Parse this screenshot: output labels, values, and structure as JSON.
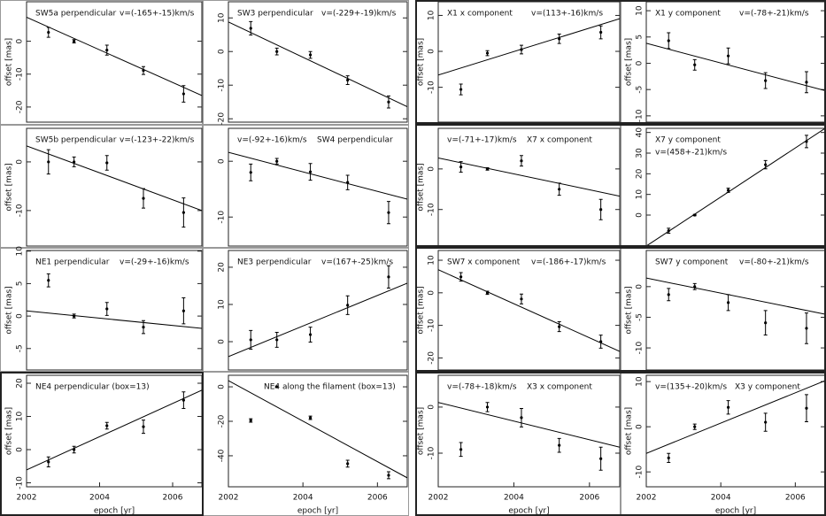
{
  "chart_data": [
    {
      "type": "scatter",
      "title": "SW5a perpendicular",
      "annotation": "v=(-165+-15)km/s",
      "ylabel": "offset [mas]",
      "x": [
        2002.6,
        2003.3,
        2004.2,
        2005.2,
        2006.3
      ],
      "values": [
        2.7,
        0,
        -2.7,
        -8.9,
        -16
      ],
      "errors": [
        1.5,
        0.5,
        1.5,
        1.2,
        2.5
      ],
      "fit": {
        "x": [
          2002,
          2006.8
        ],
        "y": [
          7.3,
          -16.5
        ]
      },
      "xlim": [
        2002,
        2006.8
      ],
      "ylim": [
        -24.6,
        12
      ],
      "yticks": [
        0,
        -10,
        -20
      ],
      "color": "#000000"
    },
    {
      "type": "scatter",
      "title": "SW3 perpendicular",
      "annotation": "v=(-229+-19)km/s",
      "x": [
        2002.6,
        2003.3,
        2004.2,
        2005.2,
        2006.3
      ],
      "values": [
        6.9,
        0,
        -1,
        -8.5,
        -15
      ],
      "errors": [
        2,
        1,
        1,
        1.3,
        1.8
      ],
      "fit": {
        "x": [
          2002,
          2006.8
        ],
        "y": [
          8.8,
          -16.4
        ]
      },
      "xlim": [
        2002,
        2006.8
      ],
      "ylim": [
        -21,
        14.8
      ],
      "yticks": [
        10,
        0,
        -10,
        -20
      ],
      "color": "#000000"
    },
    {
      "type": "scatter",
      "title": "X1 x component",
      "annotation": "v=(113+-16)km/s",
      "ylabel": "offset [mas]",
      "x": [
        2002.6,
        2003.3,
        2004.2,
        2005.2,
        2006.3
      ],
      "values": [
        -10.6,
        -0.5,
        0.5,
        3.5,
        5.3
      ],
      "errors": [
        1.5,
        0.7,
        1.2,
        1.3,
        1.8
      ],
      "fit": {
        "x": [
          2002,
          2006.8
        ],
        "y": [
          -6.6,
          9.1
        ]
      },
      "xlim": [
        2002,
        2006.8
      ],
      "ylim": [
        -19.7,
        13.8
      ],
      "yticks": [
        10,
        0,
        -10
      ],
      "color": "#000000"
    },
    {
      "type": "scatter",
      "title": "X1 y component",
      "annotation": "v=(-78+-21)km/s",
      "ylabel": "offset [mas]",
      "x": [
        2002.6,
        2003.3,
        2004.2,
        2005.2,
        2006.3
      ],
      "values": [
        4.3,
        -0.3,
        1.4,
        -3.3,
        -3.6
      ],
      "errors": [
        1.5,
        1,
        1.5,
        1.5,
        2
      ],
      "fit": {
        "x": [
          2002,
          2006.8
        ],
        "y": [
          3.8,
          -5.2
        ]
      },
      "xlim": [
        2002,
        2006.8
      ],
      "ylim": [
        -11.2,
        11.7
      ],
      "yticks": [
        10,
        5,
        0,
        -5,
        -10
      ],
      "color": "#000000"
    },
    {
      "type": "scatter",
      "title": "SW5b perpendicular",
      "annotation": "v=(-123+-22)km/s",
      "ylabel": "offset [mas]",
      "x": [
        2002.6,
        2003.3,
        2004.2,
        2005.2,
        2006.3
      ],
      "values": [
        0,
        0,
        -0.2,
        -7.5,
        -10.4
      ],
      "errors": [
        2.5,
        1,
        1.5,
        2,
        3
      ],
      "fit": {
        "x": [
          2002,
          2006.8
        ],
        "y": [
          3.3,
          -10
        ]
      },
      "xlim": [
        2002,
        2006.8
      ],
      "ylim": [
        -17.3,
        6.9
      ],
      "yticks": [
        0,
        -10
      ],
      "color": "#000000"
    },
    {
      "type": "scatter",
      "title": "SW4 perpendicular",
      "annotation": "v=(-92+-16)km/s",
      "x": [
        2002.6,
        2003.3,
        2004.2,
        2005.2,
        2006.3
      ],
      "values": [
        -2,
        0,
        -1.9,
        -3.8,
        -9.2
      ],
      "errors": [
        1.5,
        0.5,
        1.5,
        1.3,
        2
      ],
      "fit": {
        "x": [
          2002,
          2006.8
        ],
        "y": [
          1.6,
          -6.8
        ]
      },
      "xlim": [
        2002,
        2006.8
      ],
      "ylim": [
        -15.2,
        5.9
      ],
      "yticks": [
        0,
        -10
      ],
      "color": "#000000"
    },
    {
      "type": "scatter",
      "title": "X7 x component",
      "annotation": "v=(-71+-17)km/s",
      "ylabel": "offset [mas]",
      "x": [
        2002.6,
        2003.3,
        2004.2,
        2005.2,
        2006.3
      ],
      "values": [
        0.5,
        0,
        2,
        -5,
        -10
      ],
      "errors": [
        1.3,
        0.3,
        1.3,
        1.5,
        2.5
      ],
      "fit": {
        "x": [
          2002,
          2006.8
        ],
        "y": [
          2.7,
          -6.7
        ]
      },
      "xlim": [
        2002,
        2006.8
      ],
      "ylim": [
        -19,
        10
      ],
      "yticks": [
        0,
        -10
      ],
      "color": "#000000"
    },
    {
      "type": "scatter",
      "title": "X7 y component",
      "annotation": "v=(458+-21)km/s",
      "x": [
        2002.6,
        2003.3,
        2004.2,
        2005.2,
        2006.3
      ],
      "values": [
        -7.6,
        0,
        12,
        24.4,
        35.6
      ],
      "errors": [
        1.2,
        0.3,
        1,
        2,
        3
      ],
      "fit": {
        "x": [
          2002,
          2006.8
        ],
        "y": [
          -15,
          42
        ]
      },
      "xlim": [
        2002,
        2006.8
      ],
      "ylim": [
        -15,
        42
      ],
      "yticks": [
        40,
        30,
        20,
        10,
        0
      ],
      "color": "#000000"
    },
    {
      "type": "scatter",
      "title": "NE1 perpendicular",
      "annotation": "v=(-29+-16)km/s",
      "ylabel": "offset [mas]",
      "x": [
        2002.6,
        2003.3,
        2004.2,
        2005.2,
        2006.3
      ],
      "values": [
        5.5,
        0,
        1.1,
        -1.7,
        0.8
      ],
      "errors": [
        1,
        0.3,
        1,
        1,
        2
      ],
      "fit": {
        "x": [
          2002,
          2006.8
        ],
        "y": [
          0.8,
          -1.9
        ]
      },
      "xlim": [
        2002,
        2006.8
      ],
      "ylim": [
        -8.3,
        10.1
      ],
      "yticks": [
        10,
        5,
        0,
        -5
      ],
      "color": "#000000"
    },
    {
      "type": "scatter",
      "title": "NE3 perpendicular",
      "annotation": "v=(167+-25)km/s",
      "x": [
        2002.6,
        2003.3,
        2004.2,
        2005.2,
        2006.3
      ],
      "values": [
        0.5,
        0.5,
        1.9,
        9.8,
        17.4
      ],
      "errors": [
        2.5,
        2,
        2,
        2.5,
        3
      ],
      "fit": {
        "x": [
          2002,
          2006.8
        ],
        "y": [
          -4,
          15.7
        ]
      },
      "xlim": [
        2002,
        2006.8
      ],
      "ylim": [
        -7.6,
        24.5
      ],
      "yticks": [
        20,
        10,
        0
      ],
      "color": "#000000"
    },
    {
      "type": "scatter",
      "title": "SW7 x component",
      "annotation": "v=(-186+-17)km/s",
      "ylabel": "offset [mas]",
      "x": [
        2002.6,
        2003.3,
        2004.2,
        2005.2,
        2006.3
      ],
      "values": [
        4.9,
        0,
        -1.9,
        -10.4,
        -15
      ],
      "errors": [
        1.3,
        0.5,
        1.5,
        1.5,
        2
      ],
      "fit": {
        "x": [
          2002,
          2006.8
        ],
        "y": [
          7.1,
          -18
        ]
      },
      "xlim": [
        2002,
        2006.8
      ],
      "ylim": [
        -23.7,
        13
      ],
      "yticks": [
        10,
        0,
        -10,
        -20
      ],
      "color": "#000000"
    },
    {
      "type": "scatter",
      "title": "SW7 y component",
      "annotation": "v=(-80+-21)km/s",
      "ylabel": "offset [mas]",
      "x": [
        2002.6,
        2003.3,
        2004.2,
        2005.2,
        2006.3
      ],
      "values": [
        -1.3,
        0,
        -2.6,
        -5.9,
        -6.8
      ],
      "errors": [
        1,
        0.5,
        1.3,
        2,
        2.5
      ],
      "fit": {
        "x": [
          2002,
          2006.8
        ],
        "y": [
          1.4,
          -4.5
        ]
      },
      "xlim": [
        2002,
        2006.8
      ],
      "ylim": [
        -13.6,
        5.9
      ],
      "yticks": [
        0,
        -5,
        -10
      ],
      "color": "#000000"
    },
    {
      "type": "scatter",
      "title": "NE4 perpendicular (box=13)",
      "ylabel": "offset [mas]",
      "xlabel": "epoch [yr]",
      "x": [
        2002.6,
        2003.3,
        2004.2,
        2005.2,
        2006.3
      ],
      "values": [
        -3.7,
        0,
        7.2,
        6.9,
        14.9
      ],
      "errors": [
        1.5,
        1,
        1,
        2,
        2.5
      ],
      "fit": {
        "x": [
          2002,
          2006.8
        ],
        "y": [
          -6.1,
          17.9
        ]
      },
      "xlim": [
        2002,
        2006.8
      ],
      "xticks": [
        2002,
        2004,
        2006
      ],
      "ylim": [
        -11.2,
        22.4
      ],
      "yticks": [
        20,
        10,
        0,
        -10
      ],
      "color": "#000000"
    },
    {
      "type": "scatter",
      "title": "NE4 along the filament (box=13)",
      "xlabel": "epoch [yr]",
      "x": [
        2002.6,
        2003.3,
        2004.2,
        2005.2,
        2006.3
      ],
      "values": [
        -19.5,
        0,
        -18,
        -44.6,
        -51.3
      ],
      "errors": [
        1,
        0.5,
        1,
        2,
        2
      ],
      "fit": {
        "x": [
          2002,
          2006.8
        ],
        "y": [
          3.6,
          -52.8
        ]
      },
      "xlim": [
        2002,
        2006.8
      ],
      "xticks": [
        2002,
        2004,
        2006
      ],
      "ylim": [
        -58,
        6.7
      ],
      "yticks": [
        0,
        -20,
        -40
      ],
      "color": "#000000"
    },
    {
      "type": "scatter",
      "title": "X3 x component",
      "annotation": "v=(-78+-18)km/s",
      "ylabel": "offset [mas]",
      "xlabel": "epoch [yr]",
      "x": [
        2002.6,
        2003.3,
        2004.2,
        2005.2,
        2006.3
      ],
      "values": [
        -9.2,
        0,
        -2.3,
        -8.3,
        -11.2
      ],
      "errors": [
        1.5,
        1,
        2,
        1.5,
        2.5
      ],
      "fit": {
        "x": [
          2002,
          2006.8
        ],
        "y": [
          1,
          -8.7
        ]
      },
      "xlim": [
        2002,
        2006.8
      ],
      "xticks": [
        2002,
        2004,
        2006
      ],
      "ylim": [
        -17.3,
        6.9
      ],
      "yticks": [
        0,
        -10
      ],
      "color": "#000000"
    },
    {
      "type": "scatter",
      "title": "X3 y component",
      "annotation": "v=(135+-20)km/s",
      "ylabel": "offset [mas]",
      "xlabel": "epoch [yr]",
      "x": [
        2002.6,
        2003.3,
        2004.2,
        2005.2,
        2006.3
      ],
      "values": [
        -6.9,
        0,
        4.3,
        1,
        4.1
      ],
      "errors": [
        1,
        0.6,
        1.5,
        2,
        3
      ],
      "fit": {
        "x": [
          2002,
          2006.8
        ],
        "y": [
          -5.9,
          10.2
        ]
      },
      "xlim": [
        2002,
        2006.8
      ],
      "xticks": [
        2002,
        2004,
        2006
      ],
      "ylim": [
        -13.3,
        11.4
      ],
      "yticks": [
        10,
        0,
        -10
      ],
      "color": "#000000"
    }
  ]
}
